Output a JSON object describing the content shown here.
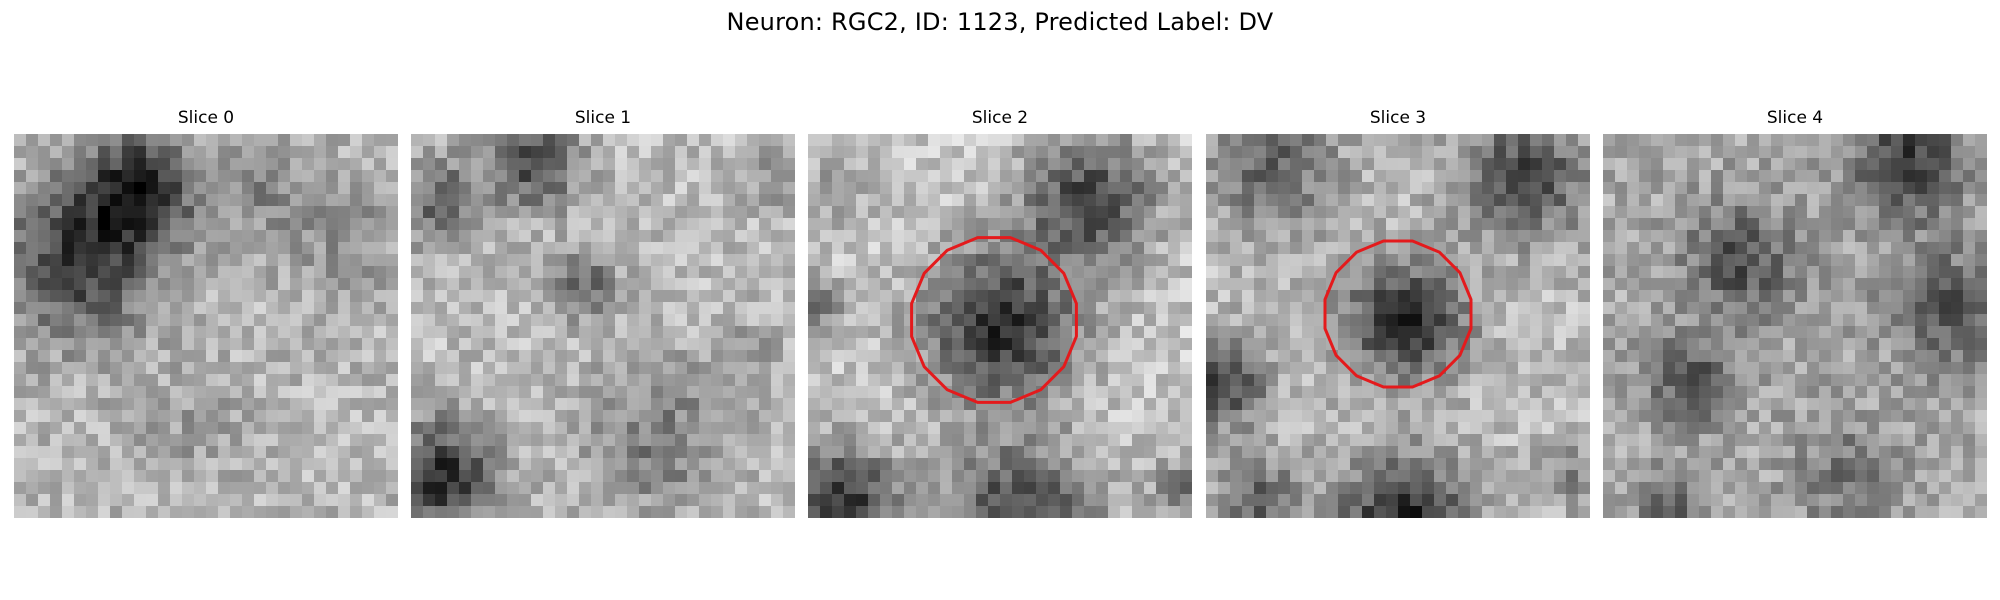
{
  "figure": {
    "title": "Neuron: RGC2, ID: 1123, Predicted Label: DV"
  },
  "colors": {
    "contour": "#e41a1c",
    "colormap": "gray"
  },
  "slices": [
    {
      "title": "Slice 0",
      "has_contour": false
    },
    {
      "title": "Slice 1",
      "has_contour": false
    },
    {
      "title": "Slice 2",
      "has_contour": true
    },
    {
      "title": "Slice 3",
      "has_contour": true
    },
    {
      "title": "Slice 4",
      "has_contour": false
    }
  ]
}
